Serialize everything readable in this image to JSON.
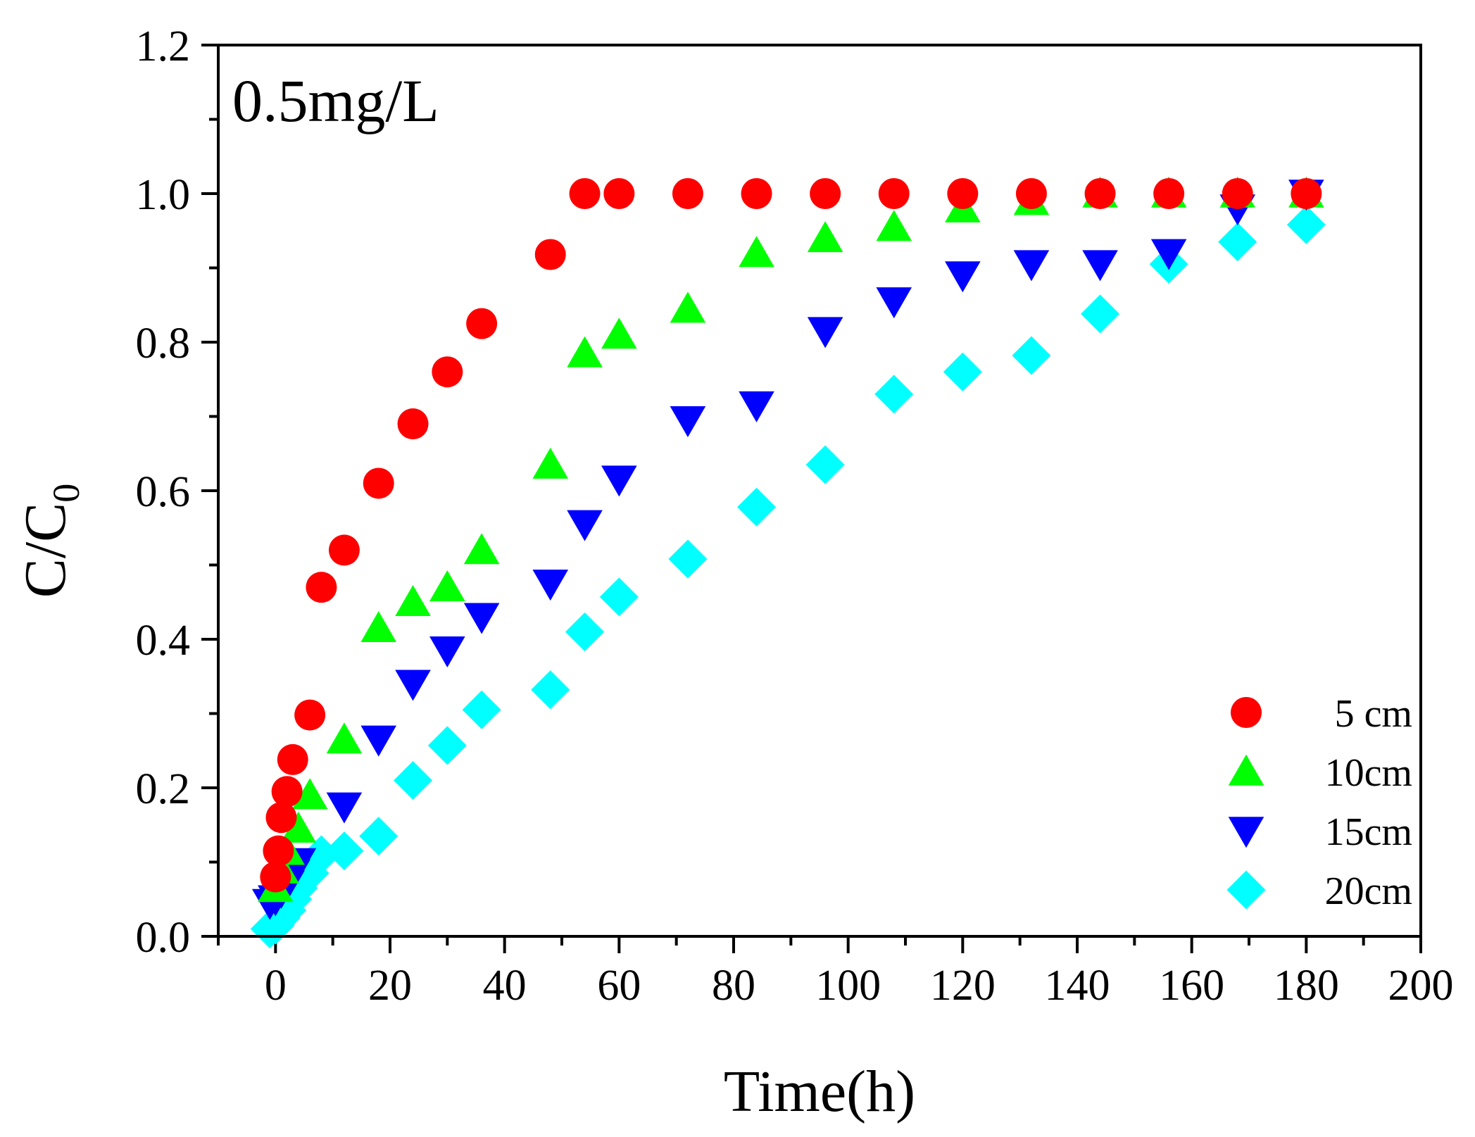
{
  "chart_data": {
    "type": "scatter",
    "title": "",
    "annotation": "0.5mg/L",
    "xlabel": "Time(h)",
    "ylabel": "C/C",
    "ylabel_sub": "0",
    "xlim": [
      -10,
      200
    ],
    "ylim": [
      0,
      1.2
    ],
    "x_ticks": [
      0,
      20,
      40,
      60,
      80,
      100,
      120,
      140,
      160,
      180,
      200
    ],
    "x_tick_labels": [
      "0",
      "20",
      "40",
      "60",
      "80",
      "100",
      "120",
      "140",
      "160",
      "180",
      "200"
    ],
    "y_ticks": [
      0.0,
      0.2,
      0.4,
      0.6,
      0.8,
      1.0,
      1.2
    ],
    "y_tick_labels": [
      "0.0",
      "0.2",
      "0.4",
      "0.6",
      "0.8",
      "1.0",
      "1.2"
    ],
    "grid": false,
    "legend_position": "bottom-right",
    "series": [
      {
        "name": "5 cm",
        "marker": "circle",
        "color": "#ff0000",
        "x": [
          0,
          0.5,
          1,
          2,
          3,
          6,
          8,
          12,
          18,
          24,
          30,
          36,
          48,
          54,
          60,
          72,
          84,
          96,
          108,
          120,
          132,
          144,
          156,
          168,
          180
        ],
        "y": [
          0.08,
          0.115,
          0.16,
          0.195,
          0.238,
          0.298,
          0.47,
          0.52,
          0.61,
          0.69,
          0.76,
          0.825,
          0.918,
          1.0,
          1.0,
          1.0,
          1.0,
          1.0,
          1.0,
          1.0,
          1.0,
          1.0,
          1.0,
          1.0,
          1.0
        ]
      },
      {
        "name": "10cm",
        "marker": "triangle-up",
        "color": "#00ff00",
        "x": [
          0,
          1,
          2,
          4,
          6,
          12,
          18,
          24,
          30,
          36,
          48,
          54,
          60,
          72,
          84,
          96,
          108,
          120,
          132,
          144,
          156,
          168,
          180
        ],
        "y": [
          0.065,
          0.09,
          0.115,
          0.145,
          0.19,
          0.265,
          0.415,
          0.45,
          0.47,
          0.52,
          0.635,
          0.785,
          0.81,
          0.845,
          0.92,
          0.94,
          0.955,
          0.98,
          0.99,
          1.0,
          1.0,
          1.0,
          1.0
        ]
      },
      {
        "name": "15cm",
        "marker": "triangle-down",
        "color": "#0000ff",
        "x": [
          -1,
          0,
          1,
          2,
          3,
          4,
          12,
          18,
          24,
          30,
          36,
          48,
          54,
          60,
          72,
          84,
          96,
          108,
          120,
          132,
          144,
          156,
          168,
          180
        ],
        "y": [
          0.045,
          0.05,
          0.06,
          0.07,
          0.085,
          0.1,
          0.175,
          0.265,
          0.34,
          0.385,
          0.43,
          0.475,
          0.555,
          0.615,
          0.695,
          0.715,
          0.815,
          0.855,
          0.89,
          0.905,
          0.905,
          0.92,
          0.98,
          1.0
        ]
      },
      {
        "name": "20cm",
        "marker": "diamond",
        "color": "#00ffff",
        "x": [
          -1,
          0,
          1,
          2,
          3,
          4,
          6,
          8,
          12,
          18,
          24,
          30,
          36,
          48,
          54,
          60,
          72,
          84,
          96,
          108,
          120,
          132,
          144,
          156,
          168,
          180
        ],
        "y": [
          0.01,
          0.015,
          0.025,
          0.035,
          0.05,
          0.065,
          0.085,
          0.11,
          0.115,
          0.135,
          0.21,
          0.257,
          0.305,
          0.332,
          0.41,
          0.457,
          0.508,
          0.578,
          0.635,
          0.73,
          0.76,
          0.782,
          0.838,
          0.905,
          0.935,
          0.958
        ]
      }
    ]
  }
}
